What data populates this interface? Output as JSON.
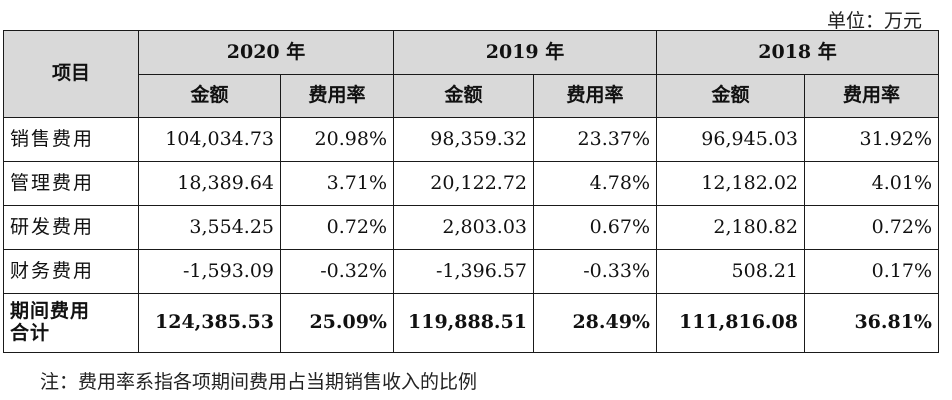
{
  "unit_note": "单位：万元",
  "header": {
    "item_label": "项目",
    "years": [
      "2020 年",
      "2019 年",
      "2018 年"
    ],
    "amount_label": "金额",
    "rate_label": "费用率"
  },
  "rows": [
    {
      "label": "销售费用",
      "cells": [
        "104,034.73",
        "20.98%",
        "98,359.32",
        "23.37%",
        "96,945.03",
        "31.92%"
      ]
    },
    {
      "label": "管理费用",
      "cells": [
        "18,389.64",
        "3.71%",
        "20,122.72",
        "4.78%",
        "12,182.02",
        "4.01%"
      ]
    },
    {
      "label": "研发费用",
      "cells": [
        "3,554.25",
        "0.72%",
        "2,803.03",
        "0.67%",
        "2,180.82",
        "0.72%"
      ]
    },
    {
      "label": "财务费用",
      "cells": [
        "-1,593.09",
        "-0.32%",
        "-1,396.57",
        "-0.33%",
        "508.21",
        "0.17%"
      ]
    }
  ],
  "total": {
    "label_line1": "期间费用",
    "label_line2": "合计",
    "cells": [
      "124,385.53",
      "25.09%",
      "119,888.51",
      "28.49%",
      "111,816.08",
      "36.81%"
    ]
  },
  "footnote": "注：费用率系指各项期间费用占当期销售收入的比例"
}
